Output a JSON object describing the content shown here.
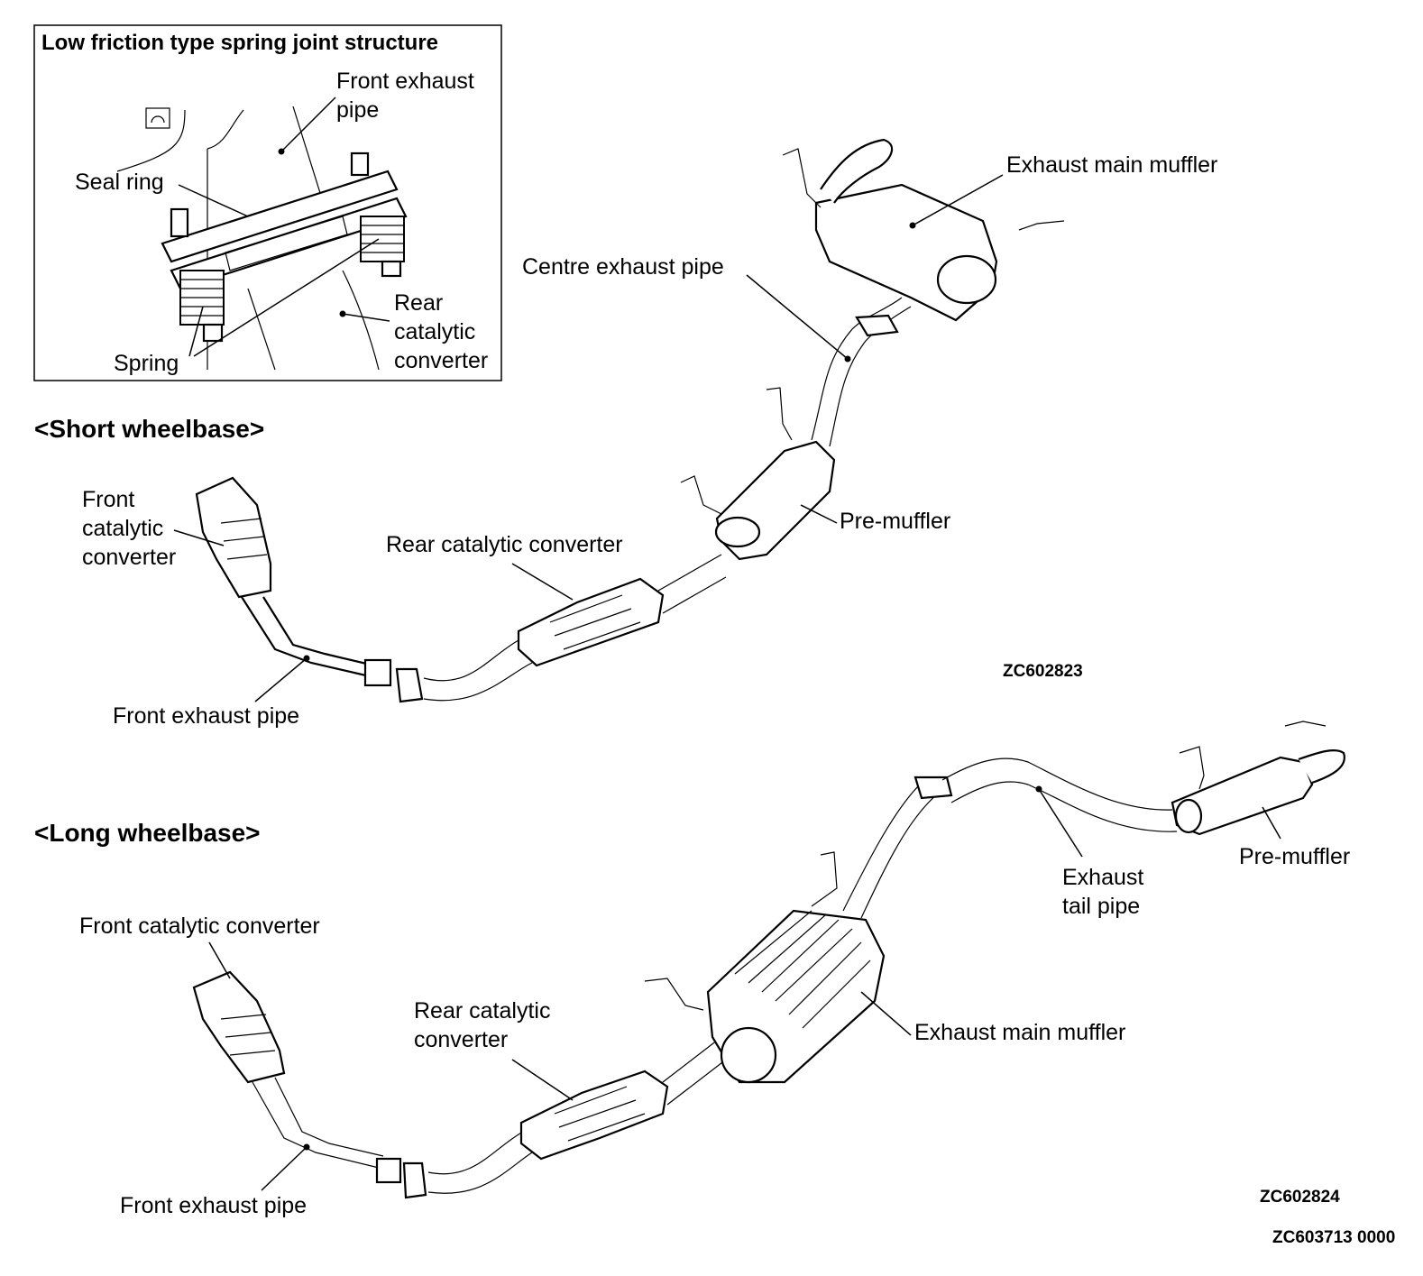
{
  "inset": {
    "title": "Low friction type spring joint structure",
    "labels": {
      "front_exhaust_pipe": [
        "Front exhaust",
        "pipe"
      ],
      "seal_ring": "Seal ring",
      "rear_catalytic_converter": [
        "Rear",
        "catalytic",
        "converter"
      ],
      "spring": "Spring"
    }
  },
  "short_wheelbase": {
    "heading": "<Short wheelbase>",
    "labels": {
      "exhaust_main_muffler": "Exhaust main muffler",
      "centre_exhaust_pipe": "Centre exhaust pipe",
      "pre_muffler": "Pre-muffler",
      "front_catalytic_converter": [
        "Front",
        "catalytic",
        "converter"
      ],
      "rear_catalytic_converter": "Rear catalytic converter",
      "front_exhaust_pipe": "Front exhaust pipe"
    },
    "code": "ZC602823"
  },
  "long_wheelbase": {
    "heading": "<Long wheelbase>",
    "labels": {
      "exhaust_tail_pipe": [
        "Exhaust",
        "tail pipe"
      ],
      "pre_muffler": "Pre-muffler",
      "front_catalytic_converter": "Front catalytic converter",
      "rear_catalytic_converter": [
        "Rear catalytic",
        "converter"
      ],
      "exhaust_main_muffler": "Exhaust main muffler",
      "front_exhaust_pipe": "Front exhaust pipe"
    },
    "code": "ZC602824"
  },
  "figure_code": "ZC603713 0000"
}
